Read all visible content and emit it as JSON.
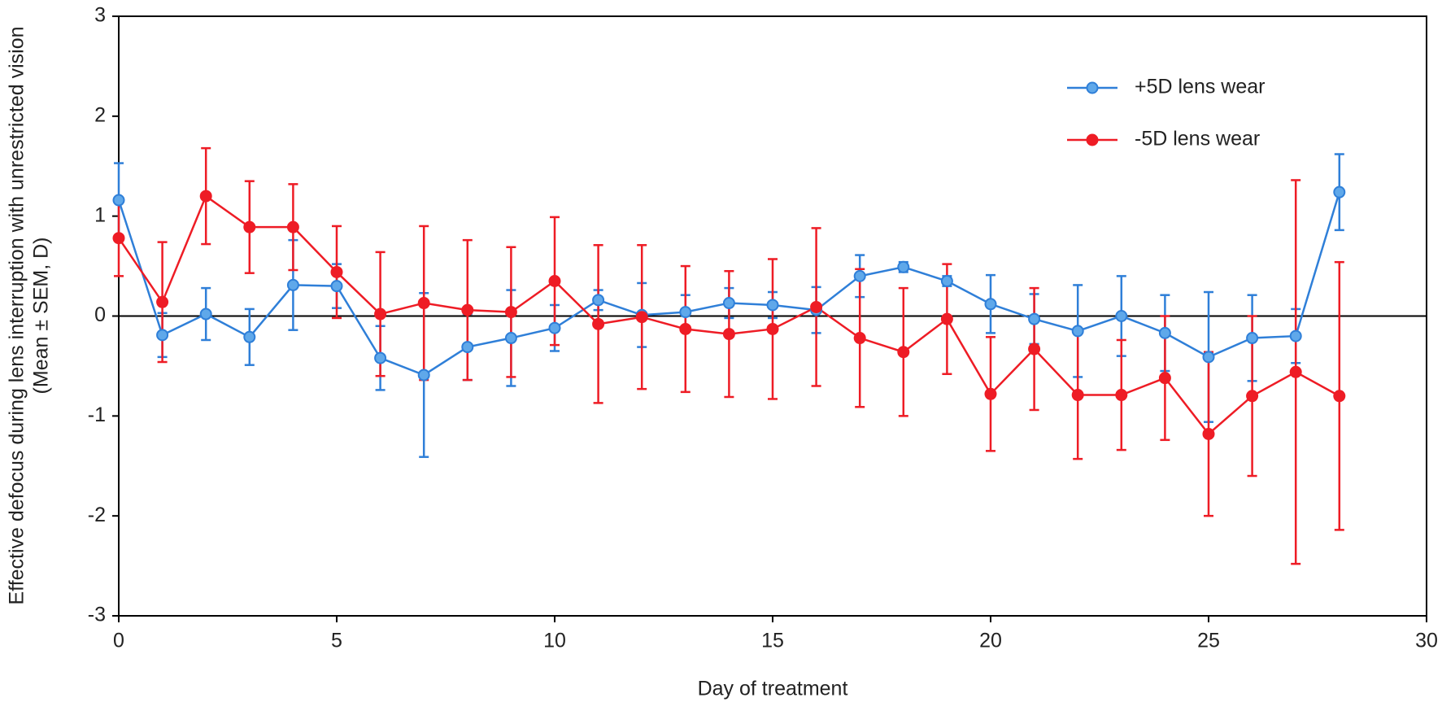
{
  "chart_data": {
    "type": "line_errorbar",
    "x_label": "Day of treatment",
    "y_label": [
      "Effective defocus during lens interruption with unrestricted vision",
      "(Mean ±  SEM, D)"
    ],
    "x": [
      0,
      1,
      2,
      3,
      4,
      5,
      6,
      7,
      8,
      9,
      10,
      11,
      12,
      13,
      14,
      15,
      16,
      17,
      18,
      19,
      20,
      21,
      22,
      23,
      24,
      25,
      26,
      27,
      28
    ],
    "series": [
      {
        "name": "+5D lens wear",
        "color": "#2f7fd8",
        "marker_fill": "#5fa8ea",
        "values": [
          1.16,
          -0.19,
          0.02,
          -0.21,
          0.31,
          0.3,
          -0.42,
          -0.59,
          -0.31,
          -0.22,
          -0.12,
          0.16,
          0.01,
          0.04,
          0.13,
          0.11,
          0.06,
          0.4,
          0.49,
          0.35,
          0.12,
          -0.03,
          -0.15,
          0.0,
          -0.17,
          -0.41,
          -0.22,
          -0.2,
          1.24
        ],
        "errors": [
          0.37,
          0.22,
          0.26,
          0.28,
          0.45,
          0.22,
          0.32,
          0.82,
          0.33,
          0.48,
          0.23,
          0.1,
          0.32,
          0.17,
          0.15,
          0.13,
          0.23,
          0.21,
          0.05,
          0.05,
          0.29,
          0.25,
          0.46,
          0.4,
          0.38,
          0.65,
          0.43,
          0.27,
          0.38
        ]
      },
      {
        "name": "-5D lens wear",
        "color": "#ee1c25",
        "marker_fill": "#ee1c25",
        "values": [
          0.78,
          0.14,
          1.2,
          0.89,
          0.89,
          0.44,
          0.02,
          0.13,
          0.06,
          0.04,
          0.35,
          -0.08,
          -0.01,
          -0.13,
          -0.18,
          -0.13,
          0.09,
          -0.22,
          -0.36,
          -0.03,
          -0.78,
          -0.33,
          -0.79,
          -0.79,
          -0.62,
          -1.18,
          -0.8,
          -0.56,
          -0.8
        ],
        "errors": [
          0.38,
          0.6,
          0.48,
          0.46,
          0.43,
          0.46,
          0.62,
          0.77,
          0.7,
          0.65,
          0.64,
          0.79,
          0.72,
          0.63,
          0.63,
          0.7,
          0.79,
          0.69,
          0.64,
          0.55,
          0.57,
          0.61,
          0.64,
          0.55,
          0.62,
          0.82,
          0.8,
          1.92,
          1.34
        ]
      }
    ],
    "xlim": [
      0,
      30
    ],
    "xticks": [
      0,
      5,
      10,
      15,
      20,
      25,
      30
    ],
    "ylim": [
      -3,
      3
    ],
    "yticks": [
      -3,
      -2,
      -1,
      0,
      1,
      2,
      3
    ],
    "grid": false,
    "legend": "upper right"
  }
}
